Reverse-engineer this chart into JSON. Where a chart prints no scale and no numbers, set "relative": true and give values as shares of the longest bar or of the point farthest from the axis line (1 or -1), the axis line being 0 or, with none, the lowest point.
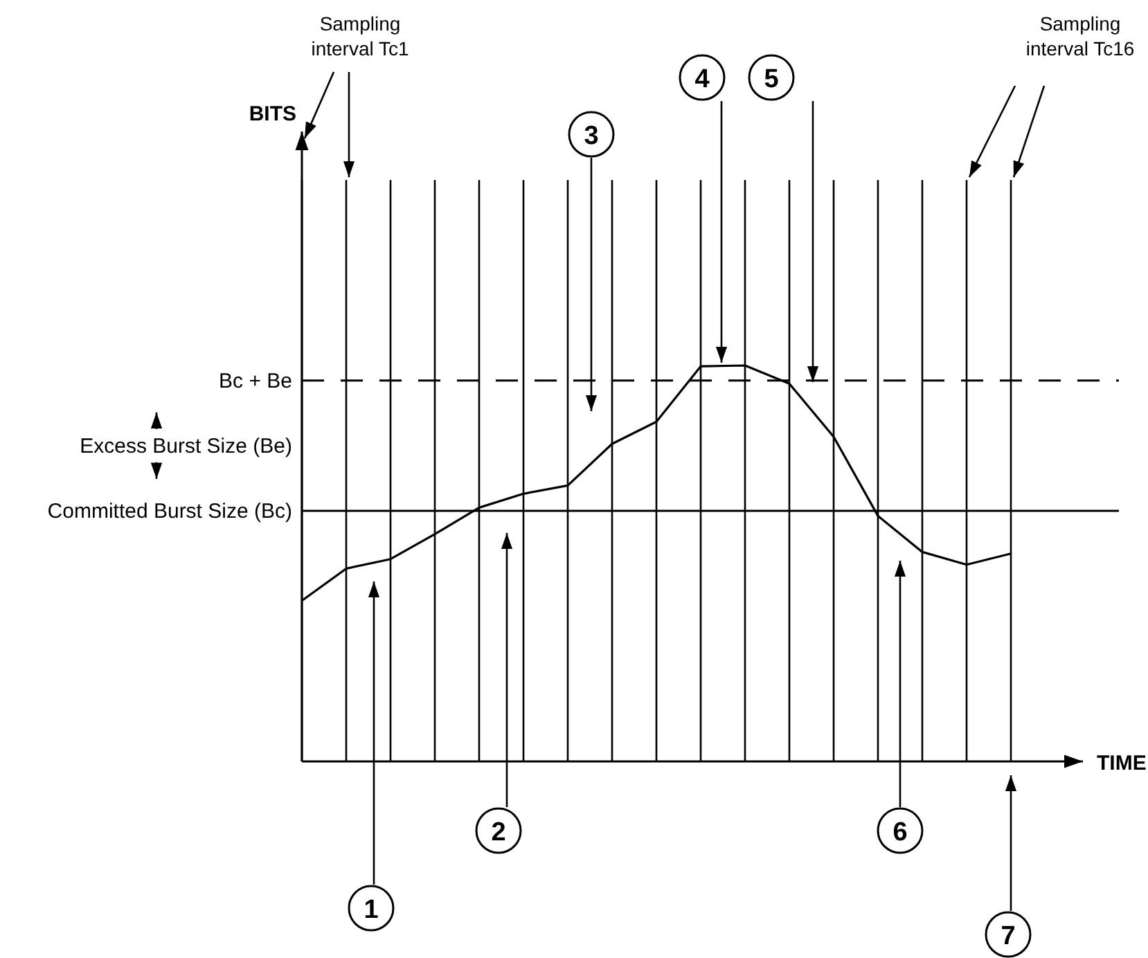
{
  "chart_data": {
    "type": "line",
    "relative": true,
    "xlabel": "TIME",
    "categories": [
      null,
      null,
      null,
      null,
      null,
      null,
      null,
      null,
      null,
      null,
      null,
      null,
      null,
      null,
      null,
      null,
      null
    ],
    "series": [
      {
        "color": "#000000",
        "values": [
          0.406,
          0.487,
          0.511,
          0.574,
          0.641,
          0.676,
          0.697,
          0.802,
          0.858,
          0.998,
          1,
          0.954,
          0.82,
          0.62,
          0.529,
          0.497,
          0.525
        ]
      }
    ],
    "grid": "x",
    "marker": "none",
    "line_style": "solid",
    "ref_lines": [
      {
        "axis": "y",
        "value": 0.962,
        "label": "Bc + Be",
        "line_style": "dashed",
        "color": "#000000"
      },
      {
        "axis": "y",
        "value": 0.633,
        "label": "Committed Burst Size (Bc)",
        "line_style": "solid",
        "color": "#000000"
      }
    ],
    "annotations": [
      "BITS",
      "Sampling interval Tc1",
      "Sampling interval Tc16",
      "Excess Burst Size (Be)",
      "1",
      "2",
      "3",
      "4",
      "5",
      "6",
      "7"
    ]
  }
}
